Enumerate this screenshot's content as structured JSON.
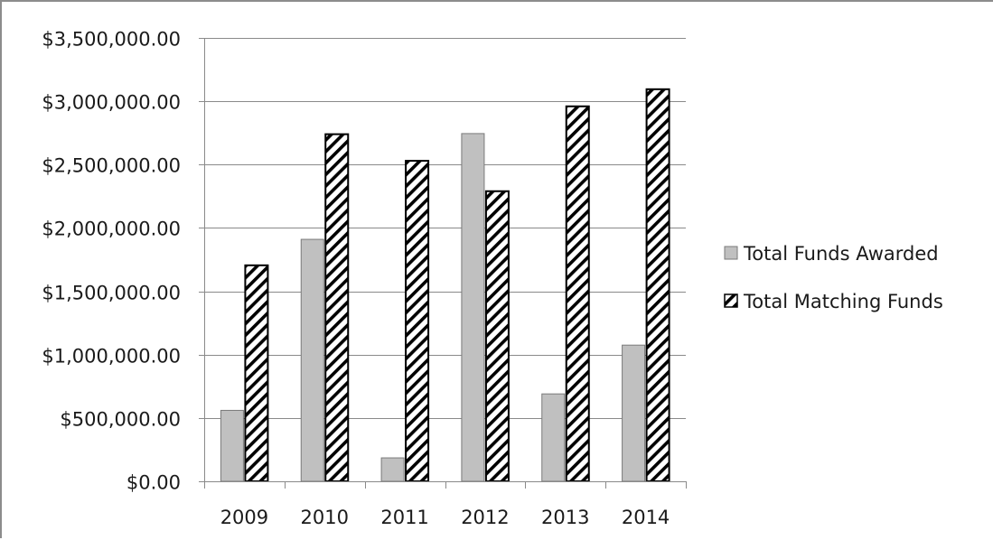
{
  "chart_data": {
    "type": "bar",
    "title": "",
    "xlabel": "",
    "ylabel": "",
    "categories": [
      "2009",
      "2010",
      "2011",
      "2012",
      "2013",
      "2014"
    ],
    "series": [
      {
        "name": "Total Funds Awarded",
        "values": [
          560000,
          1910000,
          185000,
          2745000,
          690000,
          1075000
        ],
        "color": "#c0c0c0",
        "pattern": "solid"
      },
      {
        "name": "Total Matching Funds",
        "values": [
          1705000,
          2740000,
          2530000,
          2290000,
          2960000,
          3095000
        ],
        "color": "#000000",
        "pattern": "diagonal-hatch"
      }
    ],
    "ylim": [
      0,
      3500000
    ],
    "yticks": [
      0,
      500000,
      1000000,
      1500000,
      2000000,
      2500000,
      3000000,
      3500000
    ],
    "ytick_labels": [
      "$0.00",
      "$500,000.00",
      "$1,000,000.00",
      "$1,500,000.00",
      "$2,000,000.00",
      "$2,500,000.00",
      "$3,000,000.00",
      "$3,500,000.00"
    ],
    "grid": "horizontal",
    "legend_position": "right"
  }
}
